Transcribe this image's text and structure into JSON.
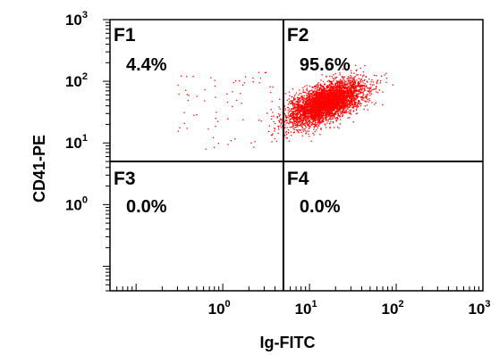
{
  "chart_data": {
    "type": "scatter",
    "title": "",
    "xlabel": "Ig-FITC",
    "ylabel": "CD41-PE",
    "x_scale": "log",
    "y_scale": "log",
    "xlim": [
      0.05,
      1000
    ],
    "ylim": [
      0.04,
      1000
    ],
    "x_ticks": [
      {
        "base": "10",
        "exp": "0",
        "value": 1
      },
      {
        "base": "10",
        "exp": "1",
        "value": 10
      },
      {
        "base": "10",
        "exp": "2",
        "value": 100
      },
      {
        "base": "10",
        "exp": "3",
        "value": 1000
      }
    ],
    "y_ticks": [
      {
        "base": "10",
        "exp": "0",
        "value": 1
      },
      {
        "base": "10",
        "exp": "1",
        "value": 10
      },
      {
        "base": "10",
        "exp": "2",
        "value": 100
      },
      {
        "base": "10",
        "exp": "3",
        "value": 1000
      }
    ],
    "gate": {
      "x": 5,
      "y": 5
    },
    "quadrants": [
      {
        "label": "F1",
        "percent": "4.4%"
      },
      {
        "label": "F2",
        "percent": "95.6%"
      },
      {
        "label": "F3",
        "percent": "0.0%"
      },
      {
        "label": "F4",
        "percent": "0.0%"
      }
    ],
    "event_color": "#ff0000",
    "main_population": {
      "x_center": 15,
      "y_center": 45,
      "x_spread_log10": 0.22,
      "y_spread_log10": 0.18,
      "correlation": 0.6
    }
  }
}
